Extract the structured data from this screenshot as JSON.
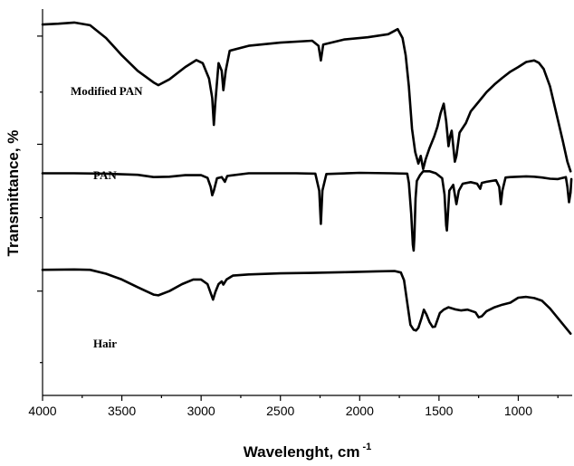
{
  "chart_data": {
    "type": "line",
    "title": "",
    "xlabel": "Wavelenght, cm",
    "xlabel_superscript": "-1",
    "ylabel": "Transmittance, %",
    "xlim": [
      4000,
      660
    ],
    "x_reversed": true,
    "xticks": [
      "4000",
      "3500",
      "3000",
      "2500",
      "2000",
      "1500",
      "1000"
    ],
    "xtick_values": [
      4000,
      3500,
      3000,
      2500,
      2000,
      1500,
      1000
    ],
    "ylim": [
      0,
      100
    ],
    "yticks_labeled": false,
    "grid": false,
    "legend": "none",
    "series": [
      {
        "name": "Modified PAN",
        "values": [
          [
            4000,
            96
          ],
          [
            3900,
            96.2
          ],
          [
            3800,
            96.5
          ],
          [
            3700,
            95.8
          ],
          [
            3600,
            92.5
          ],
          [
            3500,
            88
          ],
          [
            3400,
            84
          ],
          [
            3300,
            81
          ],
          [
            3270,
            80.3
          ],
          [
            3200,
            81.8
          ],
          [
            3100,
            85
          ],
          [
            3030,
            86.8
          ],
          [
            2990,
            86
          ],
          [
            2950,
            82
          ],
          [
            2930,
            77
          ],
          [
            2920,
            70
          ],
          [
            2910,
            76
          ],
          [
            2890,
            86
          ],
          [
            2870,
            84
          ],
          [
            2860,
            79
          ],
          [
            2845,
            84
          ],
          [
            2820,
            89.2
          ],
          [
            2700,
            90.5
          ],
          [
            2500,
            91.3
          ],
          [
            2300,
            91.8
          ],
          [
            2260,
            90.5
          ],
          [
            2245,
            86.7
          ],
          [
            2230,
            90.8
          ],
          [
            2100,
            92.1
          ],
          [
            1950,
            92.7
          ],
          [
            1820,
            93.5
          ],
          [
            1760,
            94.8
          ],
          [
            1730,
            92.5
          ],
          [
            1710,
            88
          ],
          [
            1690,
            80
          ],
          [
            1670,
            69
          ],
          [
            1650,
            63
          ],
          [
            1630,
            60
          ],
          [
            1615,
            62
          ],
          [
            1600,
            58.6
          ],
          [
            1585,
            61
          ],
          [
            1560,
            64
          ],
          [
            1530,
            67
          ],
          [
            1510,
            69.5
          ],
          [
            1490,
            73
          ],
          [
            1470,
            75.5
          ],
          [
            1455,
            71
          ],
          [
            1440,
            64.5
          ],
          [
            1430,
            67
          ],
          [
            1420,
            68.5
          ],
          [
            1400,
            60.5
          ],
          [
            1390,
            62
          ],
          [
            1370,
            68
          ],
          [
            1330,
            70.5
          ],
          [
            1300,
            73.5
          ],
          [
            1250,
            76
          ],
          [
            1200,
            78.5
          ],
          [
            1150,
            80.5
          ],
          [
            1100,
            82.2
          ],
          [
            1050,
            83.8
          ],
          [
            1000,
            85
          ],
          [
            950,
            86.3
          ],
          [
            900,
            86.7
          ],
          [
            870,
            86.1
          ],
          [
            840,
            84.5
          ],
          [
            800,
            80
          ],
          [
            760,
            73
          ],
          [
            720,
            66
          ],
          [
            690,
            60.5
          ],
          [
            670,
            58
          ]
        ]
      },
      {
        "name": "PAN",
        "values": [
          [
            4000,
            57.5
          ],
          [
            3800,
            57.5
          ],
          [
            3600,
            57.4
          ],
          [
            3400,
            57.1
          ],
          [
            3300,
            56.5
          ],
          [
            3200,
            56.6
          ],
          [
            3100,
            57
          ],
          [
            3000,
            57
          ],
          [
            2960,
            56.3
          ],
          [
            2940,
            54
          ],
          [
            2930,
            51.8
          ],
          [
            2920,
            53
          ],
          [
            2900,
            56.2
          ],
          [
            2870,
            56.5
          ],
          [
            2850,
            55.3
          ],
          [
            2835,
            56.8
          ],
          [
            2700,
            57.5
          ],
          [
            2400,
            57.5
          ],
          [
            2280,
            57.4
          ],
          [
            2255,
            53
          ],
          [
            2245,
            44.4
          ],
          [
            2235,
            53
          ],
          [
            2210,
            57.3
          ],
          [
            2000,
            57.6
          ],
          [
            1800,
            57.5
          ],
          [
            1700,
            57.4
          ],
          [
            1690,
            55
          ],
          [
            1675,
            47
          ],
          [
            1665,
            39
          ],
          [
            1660,
            37.5
          ],
          [
            1655,
            41
          ],
          [
            1648,
            51
          ],
          [
            1640,
            55.5
          ],
          [
            1620,
            57
          ],
          [
            1600,
            58
          ],
          [
            1560,
            58
          ],
          [
            1520,
            57.5
          ],
          [
            1480,
            56.2
          ],
          [
            1465,
            52
          ],
          [
            1455,
            44
          ],
          [
            1450,
            42.7
          ],
          [
            1445,
            46
          ],
          [
            1435,
            53
          ],
          [
            1410,
            54.5
          ],
          [
            1390,
            49.5
          ],
          [
            1375,
            53
          ],
          [
            1350,
            54.8
          ],
          [
            1300,
            55.2
          ],
          [
            1260,
            54.8
          ],
          [
            1240,
            53.5
          ],
          [
            1230,
            55
          ],
          [
            1200,
            55.3
          ],
          [
            1170,
            55.5
          ],
          [
            1140,
            55.7
          ],
          [
            1120,
            54
          ],
          [
            1110,
            49.5
          ],
          [
            1100,
            53
          ],
          [
            1080,
            56.4
          ],
          [
            1050,
            56.5
          ],
          [
            1000,
            56.6
          ],
          [
            950,
            56.7
          ],
          [
            900,
            56.6
          ],
          [
            850,
            56.4
          ],
          [
            800,
            56.1
          ],
          [
            750,
            56
          ],
          [
            700,
            56.5
          ],
          [
            690,
            54
          ],
          [
            680,
            50
          ],
          [
            670,
            52.5
          ],
          [
            665,
            56
          ]
        ]
      },
      {
        "name": "Hair",
        "values": [
          [
            4000,
            32.5
          ],
          [
            3800,
            32.6
          ],
          [
            3700,
            32.5
          ],
          [
            3600,
            31.5
          ],
          [
            3500,
            30
          ],
          [
            3400,
            28
          ],
          [
            3300,
            26.1
          ],
          [
            3270,
            25.9
          ],
          [
            3200,
            27
          ],
          [
            3120,
            28.8
          ],
          [
            3050,
            30
          ],
          [
            3000,
            30
          ],
          [
            2960,
            28.8
          ],
          [
            2940,
            26.5
          ],
          [
            2925,
            24.8
          ],
          [
            2910,
            26.8
          ],
          [
            2890,
            28.8
          ],
          [
            2870,
            29.5
          ],
          [
            2860,
            28.7
          ],
          [
            2840,
            30
          ],
          [
            2800,
            31
          ],
          [
            2700,
            31.3
          ],
          [
            2500,
            31.6
          ],
          [
            2300,
            31.7
          ],
          [
            2100,
            31.9
          ],
          [
            1900,
            32.1
          ],
          [
            1780,
            32.2
          ],
          [
            1740,
            31.8
          ],
          [
            1720,
            29.8
          ],
          [
            1700,
            24
          ],
          [
            1680,
            18.3
          ],
          [
            1660,
            17
          ],
          [
            1645,
            16.8
          ],
          [
            1630,
            17.5
          ],
          [
            1610,
            20
          ],
          [
            1595,
            22.2
          ],
          [
            1580,
            21
          ],
          [
            1560,
            19
          ],
          [
            1540,
            17.7
          ],
          [
            1525,
            17.8
          ],
          [
            1510,
            19.5
          ],
          [
            1495,
            21.3
          ],
          [
            1470,
            22.2
          ],
          [
            1440,
            22.8
          ],
          [
            1400,
            22.3
          ],
          [
            1360,
            22
          ],
          [
            1320,
            22.2
          ],
          [
            1270,
            21.5
          ],
          [
            1250,
            20.2
          ],
          [
            1230,
            20.5
          ],
          [
            1200,
            21.8
          ],
          [
            1150,
            22.8
          ],
          [
            1100,
            23.5
          ],
          [
            1050,
            24
          ],
          [
            1000,
            25.3
          ],
          [
            950,
            25.5
          ],
          [
            900,
            25.2
          ],
          [
            850,
            24.5
          ],
          [
            800,
            22.5
          ],
          [
            750,
            20
          ],
          [
            700,
            17.5
          ],
          [
            670,
            16
          ]
        ]
      }
    ]
  }
}
